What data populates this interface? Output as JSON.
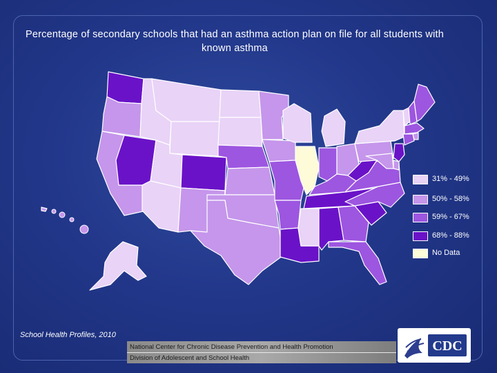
{
  "title": "Percentage of secondary schools that had an asthma action plan on file for all students with known asthma",
  "source": "School Health Profiles, 2010",
  "footer": {
    "line1": "National Center for Chronic Disease Prevention and Health Promotion",
    "line2": "Division of Adolescent and School Health"
  },
  "logo_text": "CDC",
  "legend": [
    {
      "label": "31% - 49%",
      "color": "#e9d3f7"
    },
    {
      "label": "50% - 58%",
      "color": "#c596eb"
    },
    {
      "label": "59% - 67%",
      "color": "#9d56e0"
    },
    {
      "label": "68% - 88%",
      "color": "#6a12c8"
    },
    {
      "label": "No Data",
      "color": "#fdfbd8"
    }
  ],
  "colors": {
    "background": "#22378a",
    "border": "#ffffff"
  },
  "state_classes": {
    "WA": 3,
    "OR": 1,
    "CA": 1,
    "NV": 3,
    "ID": 0,
    "MT": 0,
    "WY": 0,
    "UT": 0,
    "AZ": 0,
    "CO": 3,
    "NM": 1,
    "ND": 0,
    "SD": 0,
    "NE": 2,
    "KS": 1,
    "OK": 1,
    "TX": 1,
    "MN": 1,
    "IA": 1,
    "MO": 2,
    "AR": 2,
    "LA": 3,
    "WI": 0,
    "IL": 4,
    "MI": 0,
    "IN": 2,
    "OH": 1,
    "KY": 2,
    "TN": 3,
    "MS": 0,
    "AL": 3,
    "GA": 2,
    "FL": 2,
    "SC": 3,
    "NC": 2,
    "VA": 2,
    "WV": 3,
    "PA": 1,
    "NY": 0,
    "VT": 0,
    "NH": 2,
    "ME": 2,
    "MA": 2,
    "RI": 1,
    "CT": 2,
    "NJ": 3,
    "DE": 1,
    "MD": 1,
    "AK": 0,
    "HI": 1
  }
}
